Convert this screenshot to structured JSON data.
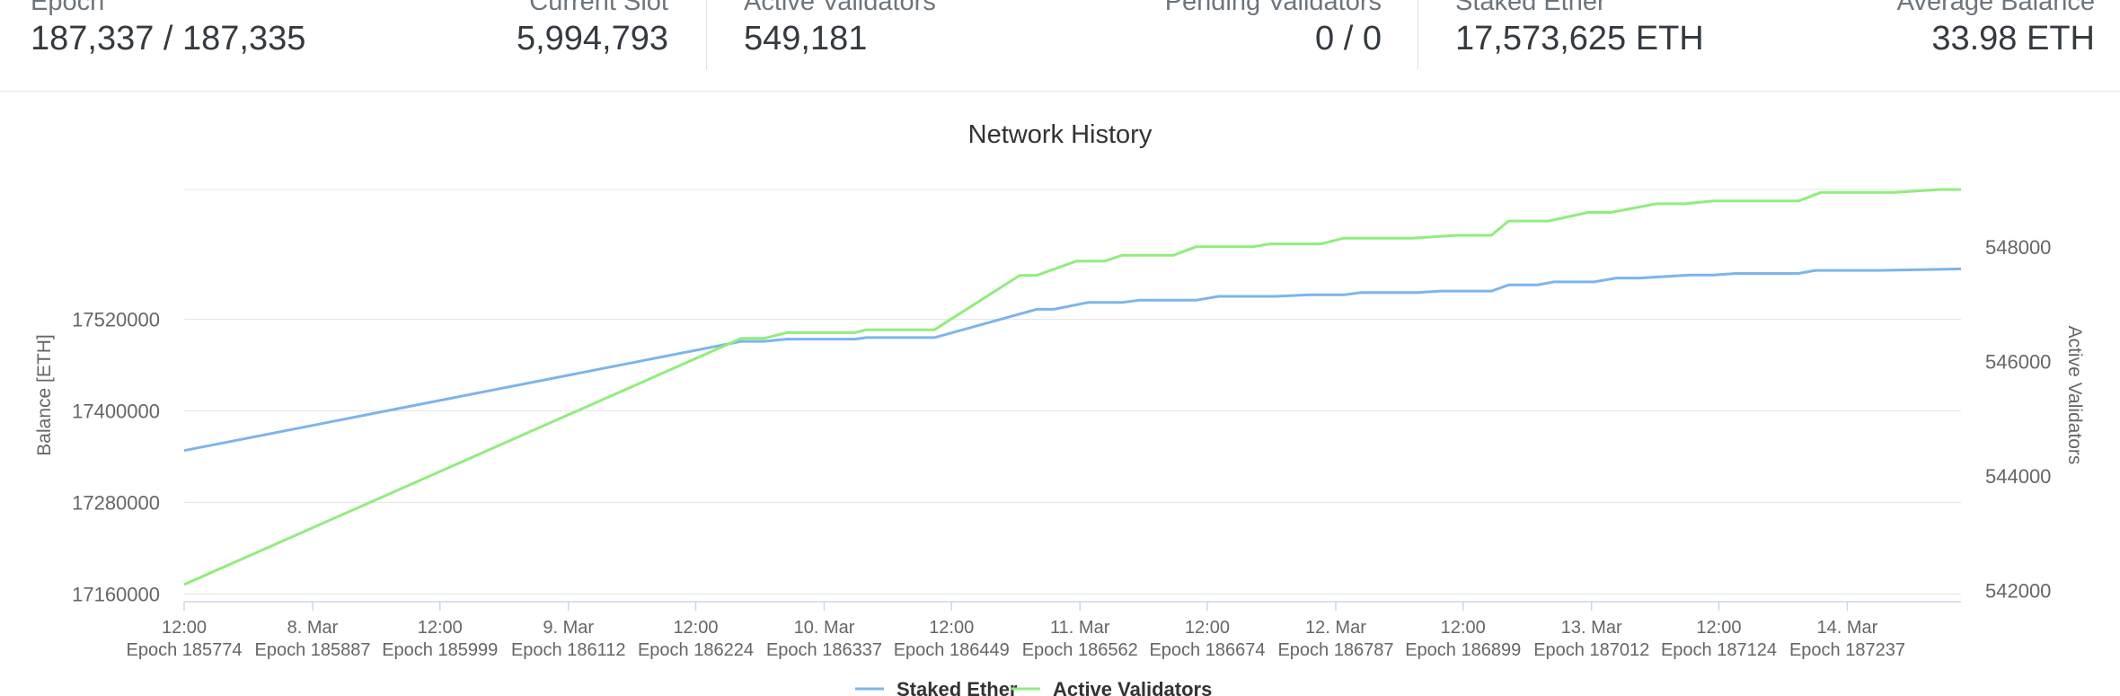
{
  "stats": [
    {
      "label": "Epoch",
      "value": "187,337 / 187,335"
    },
    {
      "label": "Current Slot",
      "value": "5,994,793"
    },
    {
      "label": "Active Validators",
      "value": "549,181"
    },
    {
      "label": "Pending Validators",
      "value": "0 / 0"
    },
    {
      "label": "Staked Ether",
      "value": "17,573,625 ETH"
    },
    {
      "label": "Average Balance",
      "value": "33.98 ETH"
    }
  ],
  "chart_data": {
    "type": "line",
    "title": "Network History",
    "ylabel": "Balance [ETH]",
    "y2label": "Active Validators",
    "ylim": [
      17150000,
      17690000
    ],
    "y2lim": [
      541800,
      549000
    ],
    "yticks": [
      "17160000",
      "17280000",
      "17400000",
      "17520000"
    ],
    "y2ticks": [
      "542000",
      "544000",
      "546000",
      "548000"
    ],
    "xlim": [
      185774,
      187337
    ],
    "xticks": [
      {
        "epoch": 185774,
        "top": "12:00",
        "bottom": "Epoch 185774"
      },
      {
        "epoch": 185887,
        "top": "8. Mar",
        "bottom": "Epoch 185887"
      },
      {
        "epoch": 185999,
        "top": "12:00",
        "bottom": "Epoch 185999"
      },
      {
        "epoch": 186112,
        "top": "9. Mar",
        "bottom": "Epoch 186112"
      },
      {
        "epoch": 186224,
        "top": "12:00",
        "bottom": "Epoch 186224"
      },
      {
        "epoch": 186337,
        "top": "10. Mar",
        "bottom": "Epoch 186337"
      },
      {
        "epoch": 186449,
        "top": "12:00",
        "bottom": "Epoch 186449"
      },
      {
        "epoch": 186562,
        "top": "11. Mar",
        "bottom": "Epoch 186562"
      },
      {
        "epoch": 186674,
        "top": "12:00",
        "bottom": "Epoch 186674"
      },
      {
        "epoch": 186787,
        "top": "12. Mar",
        "bottom": "Epoch 186787"
      },
      {
        "epoch": 186899,
        "top": "12:00",
        "bottom": "Epoch 186899"
      },
      {
        "epoch": 187012,
        "top": "13. Mar",
        "bottom": "Epoch 187012"
      },
      {
        "epoch": 187124,
        "top": "12:00",
        "bottom": "Epoch 187124"
      },
      {
        "epoch": 187237,
        "top": "14. Mar",
        "bottom": "Epoch 187237"
      }
    ],
    "grid": true,
    "legend_position": "bottom",
    "series": [
      {
        "name": "Staked Ether",
        "axis": "left",
        "color": "#7cb5ec",
        "x": [
          185774,
          186264,
          186284,
          186304,
          186364,
          186374,
          186434,
          186524,
          186539,
          186569,
          186599,
          186614,
          186664,
          186684,
          186734,
          186764,
          186794,
          186809,
          186859,
          186879,
          186924,
          186939,
          186964,
          186979,
          187014,
          187034,
          187054,
          187099,
          187119,
          187139,
          187194,
          187209,
          187264,
          187337
        ],
        "y": [
          17348000,
          17491000,
          17491000,
          17494000,
          17494000,
          17496000,
          17496000,
          17533000,
          17533000,
          17542000,
          17542000,
          17545000,
          17545000,
          17550000,
          17550000,
          17552000,
          17552000,
          17555000,
          17555000,
          17557000,
          17557000,
          17565000,
          17565000,
          17569000,
          17569000,
          17574000,
          17574000,
          17578000,
          17578000,
          17580000,
          17580000,
          17584000,
          17584000,
          17586000
        ]
      },
      {
        "name": "Active Validators",
        "axis": "right",
        "color": "#90ed7d",
        "x": [
          185774,
          186264,
          186284,
          186304,
          186364,
          186374,
          186434,
          186509,
          186524,
          186559,
          186584,
          186599,
          186644,
          186664,
          186714,
          186729,
          186774,
          186794,
          186854,
          186894,
          186924,
          186939,
          186974,
          187009,
          187029,
          187069,
          187094,
          187119,
          187139,
          187164,
          187194,
          187214,
          187264,
          187279,
          187319,
          187337
        ],
        "y": [
          542100,
          546400,
          546400,
          546500,
          546500,
          546550,
          546550,
          547500,
          547500,
          547750,
          547750,
          547850,
          547850,
          548000,
          548000,
          548050,
          548050,
          548150,
          548150,
          548200,
          548200,
          548450,
          548450,
          548600,
          548600,
          548750,
          548750,
          548800,
          548800,
          548800,
          548800,
          548950,
          548950,
          548950,
          549000,
          549000
        ]
      }
    ]
  }
}
